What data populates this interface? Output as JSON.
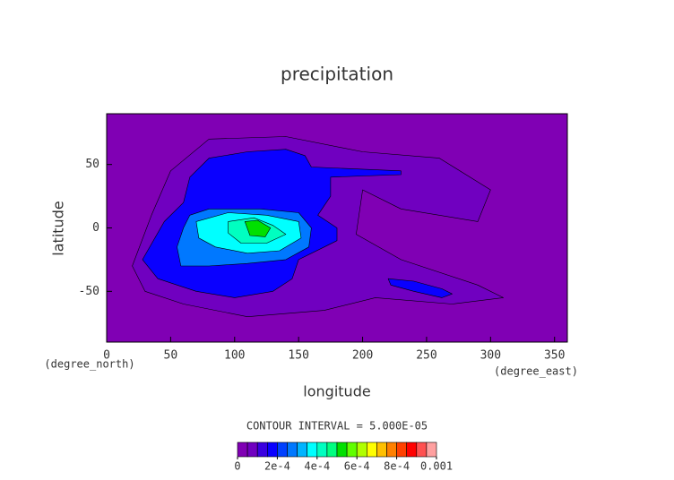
{
  "chart_data": {
    "type": "contour",
    "title": "precipitation",
    "xlabel": "longitude",
    "ylabel": "latitude",
    "xunit": "(degree_east)",
    "yunit": "(degree_north)",
    "xlim": [
      0,
      360
    ],
    "ylim": [
      -90,
      90
    ],
    "xticks": [
      0,
      50,
      100,
      150,
      200,
      250,
      300,
      350
    ],
    "yticks": [
      -50,
      0,
      50
    ],
    "colorbar_title": "CONTOUR INTERVAL = 5.000E-05",
    "clim": [
      0,
      0.001
    ],
    "colors": [
      "#8000b4",
      "#7000c0",
      "#3a00e0",
      "#0a00ff",
      "#0040ff",
      "#0078ff",
      "#00b4ff",
      "#00ffff",
      "#00ffc0",
      "#00ff80",
      "#00e000",
      "#60ff00",
      "#b0ff00",
      "#ffff00",
      "#ffc000",
      "#ff8000",
      "#ff4000",
      "#ff0000",
      "#ff5050",
      "#ffa0a0"
    ],
    "cticks": [
      0,
      {
        "value": 0.0002,
        "label": "2e-4"
      },
      {
        "value": 0.0004,
        "label": "4e-4"
      },
      {
        "value": 0.0006,
        "label": "6e-4"
      },
      {
        "value": 0.0008,
        "label": "8e-4"
      },
      0.001
    ],
    "regions": [
      {
        "level": 5e-05,
        "points": [
          [
            20,
            -30
          ],
          [
            35,
            10
          ],
          [
            50,
            45
          ],
          [
            80,
            70
          ],
          [
            140,
            72
          ],
          [
            200,
            60
          ],
          [
            260,
            55
          ],
          [
            300,
            30
          ],
          [
            290,
            5
          ],
          [
            230,
            15
          ],
          [
            200,
            30
          ],
          [
            195,
            -5
          ],
          [
            230,
            -25
          ],
          [
            290,
            -45
          ],
          [
            310,
            -55
          ],
          [
            270,
            -60
          ],
          [
            210,
            -55
          ],
          [
            170,
            -65
          ],
          [
            110,
            -70
          ],
          [
            60,
            -60
          ],
          [
            30,
            -50
          ]
        ]
      },
      {
        "level": 0.00015,
        "points": [
          [
            28,
            -25
          ],
          [
            45,
            5
          ],
          [
            60,
            20
          ],
          [
            65,
            40
          ],
          [
            80,
            55
          ],
          [
            110,
            60
          ],
          [
            140,
            62
          ],
          [
            155,
            57
          ],
          [
            160,
            48
          ],
          [
            230,
            45
          ],
          [
            230,
            42
          ],
          [
            175,
            40
          ],
          [
            175,
            25
          ],
          [
            165,
            10
          ],
          [
            180,
            0
          ],
          [
            180,
            -10
          ],
          [
            170,
            -15
          ],
          [
            150,
            -25
          ],
          [
            145,
            -40
          ],
          [
            130,
            -50
          ],
          [
            100,
            -55
          ],
          [
            70,
            -50
          ],
          [
            40,
            -40
          ]
        ]
      },
      {
        "level": 0.00015,
        "points": [
          [
            220,
            -40
          ],
          [
            240,
            -42
          ],
          [
            262,
            -48
          ],
          [
            270,
            -52
          ],
          [
            262,
            -55
          ],
          [
            240,
            -50
          ],
          [
            222,
            -45
          ]
        ]
      },
      {
        "level": 0.00025,
        "points": [
          [
            55,
            -15
          ],
          [
            60,
            0
          ],
          [
            65,
            10
          ],
          [
            80,
            15
          ],
          [
            120,
            15
          ],
          [
            150,
            12
          ],
          [
            160,
            0
          ],
          [
            158,
            -15
          ],
          [
            140,
            -25
          ],
          [
            110,
            -28
          ],
          [
            80,
            -30
          ],
          [
            58,
            -30
          ]
        ]
      },
      {
        "level": 0.00035,
        "points": [
          [
            72,
            -8
          ],
          [
            70,
            5
          ],
          [
            95,
            12
          ],
          [
            125,
            10
          ],
          [
            150,
            5
          ],
          [
            152,
            -8
          ],
          [
            135,
            -18
          ],
          [
            110,
            -20
          ],
          [
            85,
            -15
          ]
        ]
      },
      {
        "level": 0.0004,
        "points": [
          [
            95,
            -4
          ],
          [
            95,
            5
          ],
          [
            115,
            8
          ],
          [
            130,
            2
          ],
          [
            140,
            -5
          ],
          [
            125,
            -12
          ],
          [
            105,
            -12
          ]
        ]
      },
      {
        "level": 0.0005,
        "points": [
          [
            112,
            -6
          ],
          [
            108,
            5
          ],
          [
            118,
            6
          ],
          [
            128,
            0
          ],
          [
            124,
            -7
          ]
        ]
      }
    ]
  }
}
